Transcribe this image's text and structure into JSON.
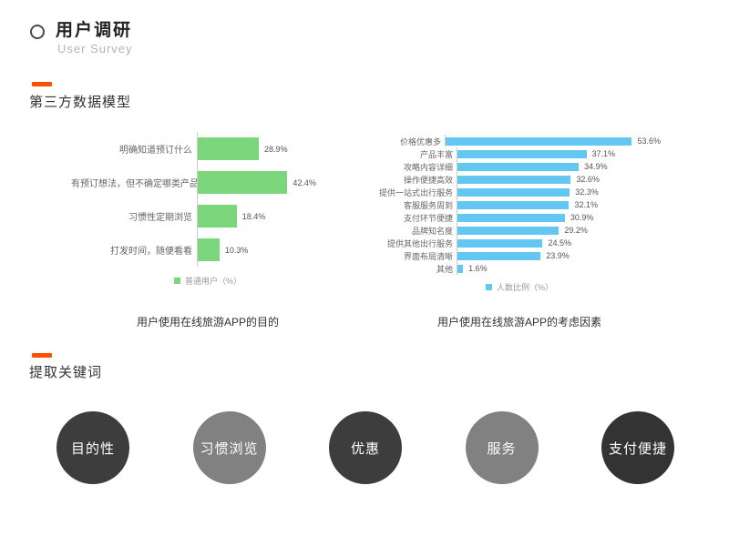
{
  "accent_color": "#ff4e00",
  "header": {
    "title": "用户调研",
    "subtitle": "User Survey",
    "bullet_icon": "circle-outline-icon"
  },
  "sections": [
    {
      "heading": "第三方数据模型"
    },
    {
      "heading": "提取关键词"
    }
  ],
  "chart_data": [
    {
      "type": "bar",
      "orientation": "horizontal",
      "title": "用户使用在线旅游APP的目的",
      "legend": "普通用户（%）",
      "legend_position": "bottom",
      "color": "#7cd67c",
      "categories": [
        "明确知道预订什么",
        "有预订想法，但不确定哪类产品",
        "习惯性定期浏览",
        "打发时间，随便看看"
      ],
      "values": [
        28.9,
        42.4,
        18.4,
        10.3
      ],
      "unit": "%",
      "xmax": 50,
      "grid": false
    },
    {
      "type": "bar",
      "orientation": "horizontal",
      "title": "用户使用在线旅游APP的考虑因素",
      "legend": "人数比例（%）",
      "legend_position": "bottom",
      "color": "#63c8f1",
      "categories": [
        "价格优惠多",
        "产品丰富",
        "攻略内容详细",
        "操作便捷高效",
        "提供一站式出行服务",
        "客服服务周到",
        "支付环节便捷",
        "品牌知名度",
        "提供其他出行服务",
        "界面布局清晰",
        "其他"
      ],
      "values": [
        53.6,
        37.1,
        34.9,
        32.6,
        32.3,
        32.1,
        30.9,
        29.2,
        24.5,
        23.9,
        1.6
      ],
      "unit": "%",
      "xmax": 65,
      "grid": false
    }
  ],
  "keywords": {
    "items": [
      {
        "label": "目的性",
        "color": "#3d3d3d"
      },
      {
        "label": "习惯浏览",
        "color": "#818181"
      },
      {
        "label": "优惠",
        "color": "#3d3d3d"
      },
      {
        "label": "服务",
        "color": "#818181"
      },
      {
        "label": "支付便捷",
        "color": "#333333"
      }
    ]
  }
}
